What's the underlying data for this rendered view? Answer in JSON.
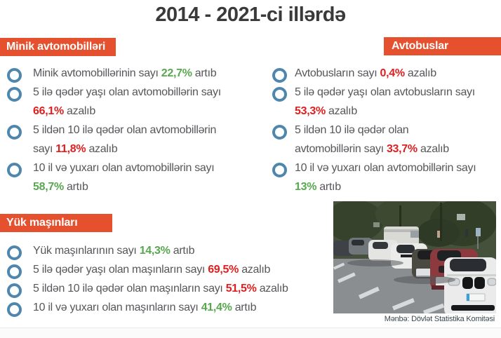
{
  "title": "2014 - 2021-ci illərdə",
  "colors": {
    "accent": "#e5502e",
    "green": "#57a84f",
    "red": "#df1f1f",
    "bullet_blue": "#4e86ae",
    "title_ink": "#3a3a3a",
    "body_text": "#57575b"
  },
  "sections": [
    {
      "id": "minik",
      "title": "Minik avtomobilləri",
      "items": [
        {
          "lines": [
            [
              {
                "t": "Minik avtomobillərinin sayı ",
                "c": "n"
              },
              {
                "t": "22,7%",
                "c": "g"
              },
              {
                "t": " artıb",
                "c": "n"
              }
            ]
          ]
        },
        {
          "lines": [
            [
              {
                "t": "5 ilə qədər yaşı olan avtomobillərin sayı",
                "c": "n"
              }
            ],
            [
              {
                "t": "66,1%",
                "c": "r"
              },
              {
                "t": " azalıb",
                "c": "n"
              }
            ]
          ]
        },
        {
          "lines": [
            [
              {
                "t": "5 ildən 10 ilə qədər olan avtomobillərin",
                "c": "n"
              }
            ],
            [
              {
                "t": "sayı ",
                "c": "n"
              },
              {
                "t": "11,8%",
                "c": "r"
              },
              {
                "t": " azalıb",
                "c": "n"
              }
            ]
          ]
        },
        {
          "lines": [
            [
              {
                "t": "10 il və yuxarı olan avtomobillərin sayı",
                "c": "n"
              }
            ],
            [
              {
                "t": "58,7%",
                "c": "g"
              },
              {
                "t": " artıb",
                "c": "n"
              }
            ]
          ]
        }
      ]
    },
    {
      "id": "avtobuslar",
      "title": "Avtobuslar",
      "items": [
        {
          "lines": [
            [
              {
                "t": "Avtobusların sayı ",
                "c": "n"
              },
              {
                "t": "0,4%",
                "c": "r"
              },
              {
                "t": " azalıb",
                "c": "n"
              }
            ]
          ]
        },
        {
          "lines": [
            [
              {
                "t": "5 ilə qədər yaşı olan avtobusların sayı",
                "c": "n"
              }
            ],
            [
              {
                "t": "53,3%",
                "c": "r"
              },
              {
                "t": " azalıb",
                "c": "n"
              }
            ]
          ]
        },
        {
          "lines": [
            [
              {
                "t": "5 ildən 10 ilə qədər olan",
                "c": "n"
              }
            ],
            [
              {
                "t": "avtomobillərin sayı ",
                "c": "n"
              },
              {
                "t": "33,7%",
                "c": "r"
              },
              {
                "t": " azalıb",
                "c": "n"
              }
            ]
          ]
        },
        {
          "lines": [
            [
              {
                "t": "10 il və yuxarı olan avtomobillərin sayı",
                "c": "n"
              }
            ],
            [
              {
                "t": "13%",
                "c": "g"
              },
              {
                "t": " artıb",
                "c": "n"
              }
            ]
          ]
        }
      ]
    },
    {
      "id": "yuk",
      "title": "Yük maşınları",
      "items": [
        {
          "lines": [
            [
              {
                "t": "Yük maşınlarının sayı ",
                "c": "n"
              },
              {
                "t": "14,3%",
                "c": "g"
              },
              {
                "t": " artıb",
                "c": "n"
              }
            ]
          ]
        },
        {
          "lines": [
            [
              {
                "t": "5 ilə qədər yaşı olan maşınların sayı ",
                "c": "n"
              },
              {
                "t": "69,5%",
                "c": "r"
              },
              {
                "t": " azalıb",
                "c": "n"
              }
            ]
          ]
        },
        {
          "lines": [
            [
              {
                "t": "5 ildən 10 ilə qədər olan maşınların sayı ",
                "c": "n"
              },
              {
                "t": "51,5%",
                "c": "r"
              },
              {
                "t": " azalıb",
                "c": "n"
              }
            ]
          ]
        },
        {
          "lines": [
            [
              {
                "t": "10 il və yuxarı olan maşınların sayı ",
                "c": "n"
              },
              {
                "t": "41,4%",
                "c": "g"
              },
              {
                "t": " artıb",
                "c": "n"
              }
            ]
          ]
        }
      ]
    }
  ],
  "photo_caption": "Mənbə: Dövlət Statistika Komitəsi"
}
